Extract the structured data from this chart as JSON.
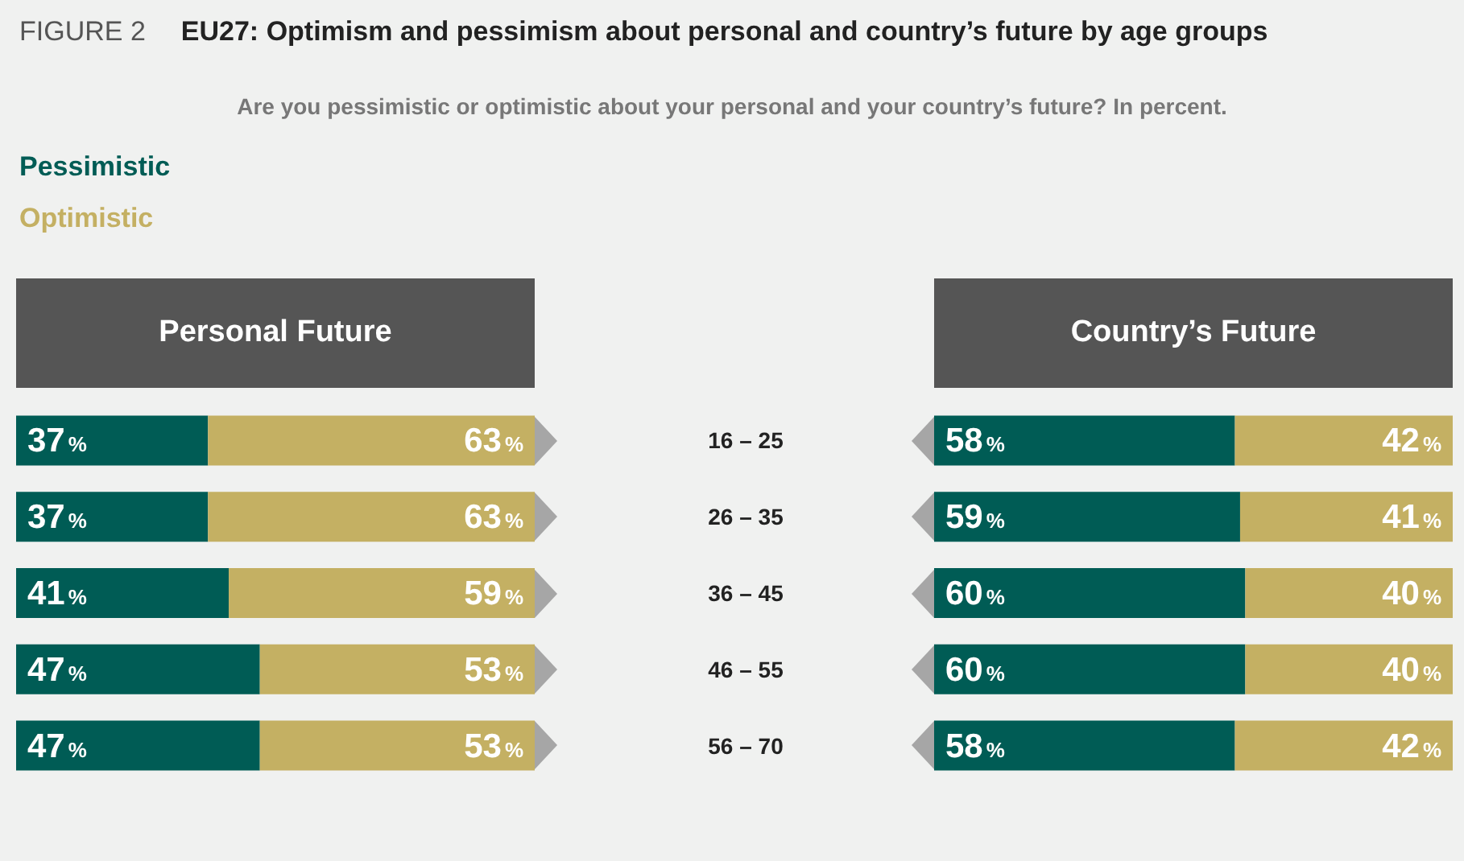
{
  "chart_data": [
    {
      "type": "bar",
      "orientation": "horizontal",
      "stacked": true,
      "title": "EU27: Optimism and pessimism about personal and country’s future by age groups",
      "subtitle": "Are you pessimistic or optimistic about your personal and your country’s future? In percent.",
      "annotations": [
        "FIGURE 2"
      ],
      "xlabel": "Personal Future",
      "legend": "top left",
      "data_labels": true,
      "categories": [
        "16 – 25",
        "26 – 35",
        "36 – 45",
        "46 – 55",
        "56 – 70"
      ],
      "series": [
        {
          "name": "Pessimistic",
          "color": "#005c55",
          "values": [
            37,
            37,
            41,
            47,
            47
          ],
          "value_labels": [
            "37%",
            "37%",
            "41%",
            "47%",
            "47%"
          ]
        },
        {
          "name": "Optimistic",
          "color": "#c4b063",
          "values": [
            63,
            63,
            59,
            53,
            53
          ],
          "value_labels": [
            "63%",
            "63%",
            "59%",
            "53%",
            "53%"
          ]
        }
      ]
    },
    {
      "type": "bar",
      "orientation": "horizontal",
      "stacked": true,
      "xlabel": "Country’s Future",
      "data_labels": true,
      "categories": [
        null,
        null,
        null,
        null,
        null
      ],
      "series": [
        {
          "color": "#005c55",
          "values": [
            58,
            59,
            60,
            60,
            58
          ],
          "value_labels": [
            "58%",
            "59%",
            "60%",
            "60%",
            "58%"
          ]
        },
        {
          "color": "#c4b063",
          "values": [
            42,
            41,
            40,
            40,
            42
          ],
          "value_labels": [
            "42%",
            "41%",
            "40%",
            "40%",
            "42%"
          ]
        }
      ]
    }
  ]
}
